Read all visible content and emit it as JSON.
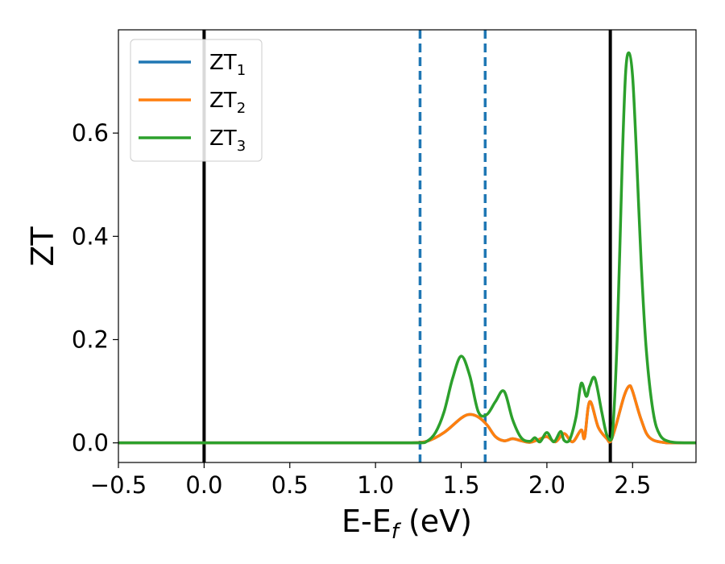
{
  "chart_data": {
    "type": "line",
    "xlabel": {
      "main": "E-E",
      "sub": "f",
      "suffix": " (eV)"
    },
    "ylabel": "ZT",
    "xlim": [
      -0.5,
      2.87
    ],
    "ylim": [
      -0.038,
      0.8
    ],
    "xticks": [
      -0.5,
      0.0,
      0.5,
      1.0,
      1.5,
      2.0,
      2.5
    ],
    "xtick_labels": [
      "−0.5",
      "0.0",
      "0.5",
      "1.0",
      "1.5",
      "2.0",
      "2.5"
    ],
    "yticks": [
      0.0,
      0.2,
      0.4,
      0.6
    ],
    "ytick_labels": [
      "0.0",
      "0.2",
      "0.4",
      "0.6"
    ],
    "grid": false,
    "legend_position": "top-left",
    "vertical_lines": [
      {
        "x": 0.0,
        "color": "#000000",
        "style": "solid"
      },
      {
        "x": 2.37,
        "color": "#000000",
        "style": "solid"
      },
      {
        "x": 1.26,
        "color": "#1f77b4",
        "style": "dashed"
      },
      {
        "x": 1.64,
        "color": "#1f77b4",
        "style": "dashed"
      }
    ],
    "series": [
      {
        "name": "ZT",
        "name_sub": "1",
        "color": "#1f77b4",
        "x": [
          -0.5,
          1.0,
          1.2,
          1.3,
          1.4,
          1.5,
          1.55,
          1.6,
          1.65,
          1.7,
          1.75,
          1.8,
          1.85,
          1.9,
          1.95,
          2.0,
          2.05,
          2.1,
          2.15,
          2.2,
          2.22,
          2.25,
          2.3,
          2.35,
          2.37,
          2.4,
          2.45,
          2.48,
          2.5,
          2.55,
          2.6,
          2.7,
          2.87
        ],
        "y": [
          0,
          0,
          0,
          0.003,
          0.02,
          0.048,
          0.055,
          0.05,
          0.035,
          0.012,
          0.004,
          0.008,
          0.004,
          0.001,
          0.006,
          0.012,
          0.002,
          0.018,
          0.002,
          0.025,
          0.01,
          0.08,
          0.03,
          0.008,
          0.002,
          0.03,
          0.09,
          0.11,
          0.1,
          0.045,
          0.01,
          0.0,
          0.0
        ]
      },
      {
        "name": "ZT",
        "name_sub": "2",
        "color": "#ff7f0e",
        "x": [
          -0.5,
          1.0,
          1.2,
          1.3,
          1.4,
          1.5,
          1.55,
          1.6,
          1.65,
          1.7,
          1.75,
          1.8,
          1.85,
          1.9,
          1.95,
          2.0,
          2.05,
          2.1,
          2.15,
          2.2,
          2.22,
          2.25,
          2.3,
          2.35,
          2.37,
          2.4,
          2.45,
          2.48,
          2.5,
          2.55,
          2.6,
          2.7,
          2.87
        ],
        "y": [
          0,
          0,
          0,
          0.003,
          0.02,
          0.048,
          0.055,
          0.05,
          0.035,
          0.012,
          0.004,
          0.008,
          0.004,
          0.001,
          0.006,
          0.012,
          0.002,
          0.018,
          0.002,
          0.025,
          0.01,
          0.08,
          0.03,
          0.008,
          0.002,
          0.03,
          0.09,
          0.11,
          0.1,
          0.045,
          0.01,
          0.0,
          0.0
        ]
      },
      {
        "name": "ZT",
        "name_sub": "3",
        "color": "#2ca02c",
        "x": [
          -0.5,
          1.0,
          1.25,
          1.3,
          1.35,
          1.4,
          1.45,
          1.5,
          1.55,
          1.6,
          1.65,
          1.7,
          1.75,
          1.8,
          1.85,
          1.9,
          1.93,
          1.96,
          2.0,
          2.04,
          2.08,
          2.1,
          2.13,
          2.17,
          2.2,
          2.23,
          2.25,
          2.28,
          2.32,
          2.35,
          2.38,
          2.41,
          2.44,
          2.46,
          2.48,
          2.5,
          2.52,
          2.55,
          2.58,
          2.62,
          2.66,
          2.72,
          2.8,
          2.87
        ],
        "y": [
          0,
          0,
          0,
          0.003,
          0.02,
          0.06,
          0.125,
          0.168,
          0.13,
          0.06,
          0.055,
          0.08,
          0.1,
          0.045,
          0.01,
          0.003,
          0.01,
          0.002,
          0.02,
          0.002,
          0.022,
          0.005,
          0.004,
          0.05,
          0.115,
          0.09,
          0.11,
          0.125,
          0.06,
          0.015,
          0.01,
          0.2,
          0.55,
          0.72,
          0.755,
          0.71,
          0.58,
          0.35,
          0.18,
          0.06,
          0.015,
          0.002,
          0.0,
          0.0
        ]
      }
    ]
  }
}
